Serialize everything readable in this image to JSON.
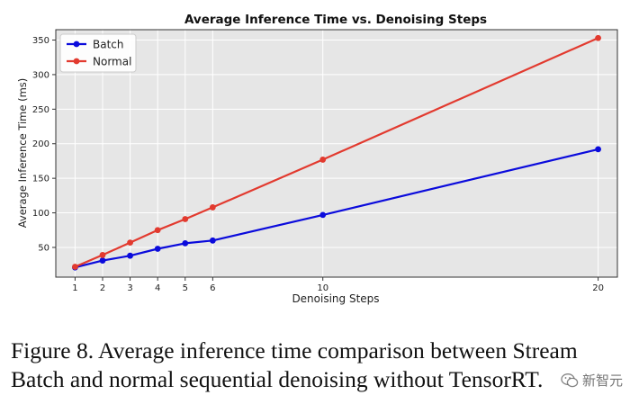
{
  "chart_data": {
    "type": "line",
    "title": "Average Inference Time vs. Denoising Steps",
    "xlabel": "Denoising Steps",
    "ylabel": "Average Inference Time (ms)",
    "x": [
      1,
      2,
      3,
      4,
      5,
      6,
      10,
      20
    ],
    "x_ticks": [
      "1",
      "2",
      "3",
      "4",
      "5",
      "6",
      "10",
      "20"
    ],
    "xlim": [
      0.3,
      20.7
    ],
    "ylim": [
      7,
      365
    ],
    "y_ticks": [
      50,
      100,
      150,
      200,
      250,
      300,
      350
    ],
    "grid": true,
    "legend_position": "top-left",
    "series": [
      {
        "name": "Batch",
        "color": "#0b0bdc",
        "values": [
          21,
          31,
          38,
          48,
          56,
          60,
          97,
          192
        ]
      },
      {
        "name": "Normal",
        "color": "#e23a2f",
        "values": [
          22,
          39,
          57,
          75,
          91,
          108,
          177,
          353
        ]
      }
    ]
  },
  "caption": {
    "line1": "Figure 8.  Average inference time comparison between Stream",
    "line2": "Batch and normal sequential denoising without TensorRT."
  },
  "watermark": {
    "text": "新智元"
  }
}
